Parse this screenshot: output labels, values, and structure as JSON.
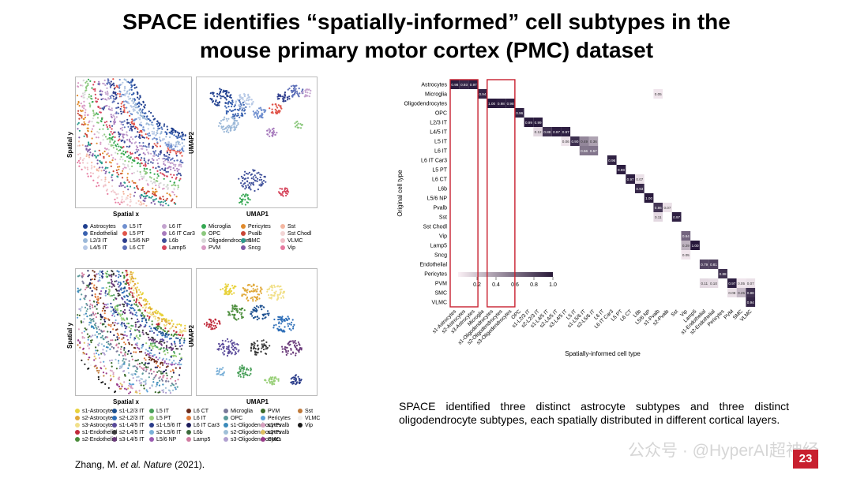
{
  "title_line1": "SPACE identifies “spatially-informed” cell subtypes in the",
  "title_line2": "mouse primary motor cortex (PMC) dataset",
  "top_plots": {
    "spatial_ylabel": "Spatial y",
    "spatial_xlabel": "Spatial x",
    "umap_ylabel": "UMAP2",
    "umap_xlabel": "UMAP1"
  },
  "bottom_plots": {
    "spatial_ylabel": "Spatial y",
    "spatial_xlabel": "Spatial x",
    "umap_ylabel": "UMAP2",
    "umap_xlabel": "UMAP1"
  },
  "legend_top": [
    {
      "label": "Astrocytes",
      "color": "#1f3f8f"
    },
    {
      "label": "Endothelial",
      "color": "#3a62b0"
    },
    {
      "label": "L2/3 IT",
      "color": "#9bb8d8"
    },
    {
      "label": "L4/5 IT",
      "color": "#b7c9e6"
    },
    {
      "label": "L5 IT",
      "color": "#6f8fcf"
    },
    {
      "label": "L5 PT",
      "color": "#e0554a"
    },
    {
      "label": "L5/6 NP",
      "color": "#2d3c8c"
    },
    {
      "label": "L6 CT",
      "color": "#5d6fb8"
    },
    {
      "label": "L6 IT",
      "color": "#c4a3cf"
    },
    {
      "label": "L6 IT Car3",
      "color": "#a77bbd"
    },
    {
      "label": "L6b",
      "color": "#3e4f9a"
    },
    {
      "label": "Lamp5",
      "color": "#d6455c"
    },
    {
      "label": "Microglia",
      "color": "#36a852"
    },
    {
      "label": "OPC",
      "color": "#8cc87e"
    },
    {
      "label": "Oligodendrocytes",
      "color": "#d8d8d8"
    },
    {
      "label": "PVM",
      "color": "#d99ac4"
    },
    {
      "label": "Pericytes",
      "color": "#e08a2c"
    },
    {
      "label": "Pvalb",
      "color": "#c94536"
    },
    {
      "label": "SMC",
      "color": "#2b9a8e"
    },
    {
      "label": "Sncg",
      "color": "#7e5aa6"
    },
    {
      "label": "Sst",
      "color": "#f4b6a0"
    },
    {
      "label": "Sst Chodl",
      "color": "#f2d4d4"
    },
    {
      "label": "VLMC",
      "color": "#f0c0c8"
    },
    {
      "label": "Vip",
      "color": "#e77aa0"
    }
  ],
  "legend_bottom": [
    {
      "label": "s1-Astrocytes",
      "color": "#e8d23c"
    },
    {
      "label": "s2-Astrocytes",
      "color": "#e0a838"
    },
    {
      "label": "s3-Astrocytes",
      "color": "#f1e08a"
    },
    {
      "label": "s1-Endothelial",
      "color": "#c02a3a"
    },
    {
      "label": "s2-Endothelial",
      "color": "#4a8c3a"
    },
    {
      "label": "s1-L2/3 IT",
      "color": "#1c4f8f"
    },
    {
      "label": "s2-L2/3 IT",
      "color": "#2f6fb8"
    },
    {
      "label": "s1-L4/5 IT",
      "color": "#5a4a9a"
    },
    {
      "label": "s2-L4/5 IT",
      "color": "#3a3a3a"
    },
    {
      "label": "s3-L4/5 IT",
      "color": "#6a3a7a"
    },
    {
      "label": "L5 IT",
      "color": "#4aa05a"
    },
    {
      "label": "L5 PT",
      "color": "#9ad07a"
    },
    {
      "label": "s1-L5/6 IT",
      "color": "#2a3c8a"
    },
    {
      "label": "s2-L5/6 IT",
      "color": "#7ab0d8"
    },
    {
      "label": "L5/6 NP",
      "color": "#9a5ab0"
    },
    {
      "label": "L6 CT",
      "color": "#6a2a1a"
    },
    {
      "label": "L6 IT",
      "color": "#e07a3a"
    },
    {
      "label": "L6 IT Car3",
      "color": "#1a1a5a"
    },
    {
      "label": "L6b",
      "color": "#3a6a3a"
    },
    {
      "label": "Lamp5",
      "color": "#d07aa0"
    },
    {
      "label": "Microglia",
      "color": "#7a7a9a"
    },
    {
      "label": "OPC",
      "color": "#5a9a9a"
    },
    {
      "label": "s1-Oligodendrocytes",
      "color": "#3a8aba"
    },
    {
      "label": "s2-Oligodendrocytes",
      "color": "#a0c0d8"
    },
    {
      "label": "s3-Oligodendrocytes",
      "color": "#b0a0d0"
    },
    {
      "label": "PVM",
      "color": "#3a6a2a"
    },
    {
      "label": "Pericytes",
      "color": "#5aa0d8"
    },
    {
      "label": "s1-Pvalb",
      "color": "#d8a0c0"
    },
    {
      "label": "s2-Pvalb",
      "color": "#e0c060"
    },
    {
      "label": "SMC",
      "color": "#9a3a8a"
    },
    {
      "label": "Sst",
      "color": "#c07a3a"
    },
    {
      "label": "VLMC",
      "color": "#f0f0f0"
    },
    {
      "label": "Vip",
      "color": "#1a1a1a"
    }
  ],
  "heatmap": {
    "ylabel": "Original cell type",
    "xlabel": "Spatially-informed cell type",
    "rows": [
      "Astrocytes",
      "Microglia",
      "Oligodendrocytes",
      "OPC",
      "L2/3 IT",
      "L4/5 IT",
      "L5 IT",
      "L6 IT",
      "L6 IT Car3",
      "L5 PT",
      "L6 CT",
      "L6b",
      "L5/6 NP",
      "Pvalb",
      "Sst",
      "Sst Chodl",
      "Vip",
      "Lamp5",
      "Sncg",
      "Endothelial",
      "Pericytes",
      "PVM",
      "SMC",
      "VLMC"
    ],
    "cols": [
      "s1-Astrocytes",
      "s2-Astrocytes",
      "s3-Astrocytes",
      "Microglia",
      "s1-Oligodendrocytes",
      "s2-Oligodendrocytes",
      "s3-Oligodendrocytes",
      "OPC",
      "s1-L2/3 IT",
      "s2-L2/3 IT",
      "s1-L4/5 IT",
      "s2-L4/5 IT",
      "s3-L4/5 IT",
      "L5 IT",
      "s1-L5/6 IT",
      "s2-L5/6 IT",
      "L6 IT",
      "L6 IT Car3",
      "L5 PT",
      "L6 CT",
      "L6b",
      "L5/6 NP",
      "s1-Pvalb",
      "s2-Pvalb",
      "Sst",
      "Vip",
      "Lamp5",
      "s1-Endothelial",
      "s2-Endothelial",
      "Pericytes",
      "PVM",
      "SMC",
      "VLMC"
    ],
    "cells": [
      {
        "r": 0,
        "c": 0,
        "v": 0.98
      },
      {
        "r": 0,
        "c": 1,
        "v": 0.93
      },
      {
        "r": 0,
        "c": 2,
        "v": 0.97
      },
      {
        "r": 1,
        "c": 3,
        "v": 0.94
      },
      {
        "r": 1,
        "c": 22,
        "v": 0.05
      },
      {
        "r": 2,
        "c": 4,
        "v": 1.0
      },
      {
        "r": 2,
        "c": 5,
        "v": 0.98
      },
      {
        "r": 2,
        "c": 6,
        "v": 0.98
      },
      {
        "r": 3,
        "c": 7,
        "v": 0.96
      },
      {
        "r": 4,
        "c": 8,
        "v": 0.99
      },
      {
        "r": 4,
        "c": 9,
        "v": 0.99
      },
      {
        "r": 5,
        "c": 9,
        "v": 0.12
      },
      {
        "r": 5,
        "c": 10,
        "v": 0.88
      },
      {
        "r": 5,
        "c": 11,
        "v": 0.97
      },
      {
        "r": 5,
        "c": 12,
        "v": 0.97
      },
      {
        "r": 6,
        "c": 12,
        "v": 0.06
      },
      {
        "r": 6,
        "c": 13,
        "v": 0.9
      },
      {
        "r": 6,
        "c": 14,
        "v": 0.49
      },
      {
        "r": 6,
        "c": 15,
        "v": 0.36
      },
      {
        "r": 7,
        "c": 14,
        "v": 0.56
      },
      {
        "r": 7,
        "c": 15,
        "v": 0.57
      },
      {
        "r": 8,
        "c": 17,
        "v": 0.96
      },
      {
        "r": 9,
        "c": 18,
        "v": 0.98
      },
      {
        "r": 10,
        "c": 19,
        "v": 0.97
      },
      {
        "r": 10,
        "c": 20,
        "v": 0.07
      },
      {
        "r": 11,
        "c": 20,
        "v": 0.93
      },
      {
        "r": 12,
        "c": 21,
        "v": 1.0
      },
      {
        "r": 13,
        "c": 22,
        "v": 0.86
      },
      {
        "r": 13,
        "c": 23,
        "v": 0.07
      },
      {
        "r": 14,
        "c": 22,
        "v": 0.11
      },
      {
        "r": 14,
        "c": 24,
        "v": 0.97
      },
      {
        "r": 16,
        "c": 25,
        "v": 0.64
      },
      {
        "r": 17,
        "c": 25,
        "v": 0.29
      },
      {
        "r": 17,
        "c": 26,
        "v": 1.0
      },
      {
        "r": 18,
        "c": 25,
        "v": 0.05
      },
      {
        "r": 19,
        "c": 27,
        "v": 0.79
      },
      {
        "r": 19,
        "c": 28,
        "v": 0.81
      },
      {
        "r": 20,
        "c": 29,
        "v": 0.88
      },
      {
        "r": 21,
        "c": 27,
        "v": 0.11
      },
      {
        "r": 21,
        "c": 28,
        "v": 0.1
      },
      {
        "r": 21,
        "c": 30,
        "v": 0.97
      },
      {
        "r": 21,
        "c": 31,
        "v": 0.05
      },
      {
        "r": 21,
        "c": 32,
        "v": 0.07
      },
      {
        "r": 22,
        "c": 30,
        "v": 0.08
      },
      {
        "r": 22,
        "c": 31,
        "v": 0.25
      },
      {
        "r": 22,
        "c": 32,
        "v": 0.88
      },
      {
        "r": 23,
        "c": 32,
        "v": 0.94
      }
    ],
    "colorbar_ticks": [
      "0.2",
      "0.4",
      "0.6",
      "0.8",
      "1.0"
    ],
    "highlight_color": "#c8202f",
    "cell_color": "#2a1a3a"
  },
  "citation_author": "Zhang, M. ",
  "citation_journal": "et al. Nature",
  "citation_year": " (2021).",
  "summary": "SPACE identified three distinct astrocyte subtypes and three distinct oligodendrocyte subtypes, each spatially distributed in different cortical layers.",
  "watermark": "公众号 · @HyperAI超神经",
  "page_number": "23"
}
